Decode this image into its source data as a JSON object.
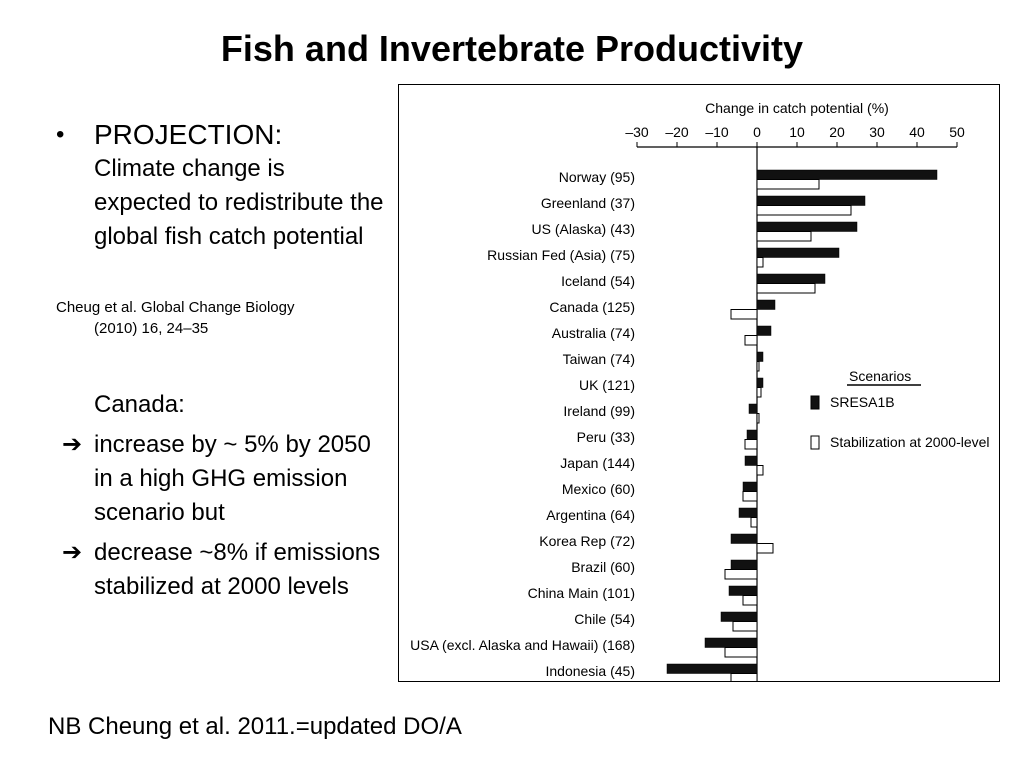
{
  "slide": {
    "title": "Fish and Invertebrate Productivity",
    "bullet": {
      "symbol": "•",
      "heading": "PROJECTION:",
      "text": "Climate change is expected to redistribute the global fish catch potential"
    },
    "citation": {
      "line1": "Cheug et al. Global Change Biology",
      "line2": "(2010) 16, 24–35"
    },
    "canada": {
      "heading": "Canada:",
      "arrow_symbol": "➔",
      "points": [
        "increase by ~ 5% by 2050 in a high GHG emission scenario but",
        "decrease ~8% if emissions stabilized at 2000 levels"
      ]
    },
    "footer": "NB Cheung et al. 2011.=updated DO/A"
  },
  "chart_data": {
    "type": "bar",
    "orientation": "horizontal",
    "title": "Change in catch potential (%)",
    "xlabel": "Change in catch potential (%)",
    "xlim": [
      -30,
      50
    ],
    "xticks": [
      "–30",
      "–20",
      "–10",
      "0",
      "10",
      "20",
      "30",
      "40",
      "50"
    ],
    "grid": false,
    "legend": {
      "title": "Scenarios",
      "placement": "right"
    },
    "categories": [
      "Norway (95)",
      "Greenland (37)",
      "US (Alaska) (43)",
      "Russian Fed (Asia) (75)",
      "Iceland (54)",
      "Canada (125)",
      "Australia (74)",
      "Taiwan (74)",
      "UK (121)",
      "Ireland (99)",
      "Peru (33)",
      "Japan (144)",
      "Mexico (60)",
      "Argentina (64)",
      "Korea Rep (72)",
      "Brazil (60)",
      "China Main (101)",
      "Chile (54)",
      "USA (excl. Alaska and Hawaii) (168)",
      "Indonesia (45)"
    ],
    "series": [
      {
        "name": "SRESA1B",
        "color": "#111111",
        "values": [
          45,
          27,
          25,
          20.5,
          17,
          4.5,
          3.5,
          1.5,
          1.5,
          -2,
          -2.5,
          -3,
          -3.5,
          -4.5,
          -6.5,
          -6.5,
          -7,
          -9,
          -13,
          -22.5
        ]
      },
      {
        "name": "Stabilization at 2000-level",
        "color": "#ffffff",
        "values": [
          15.5,
          23.5,
          13.5,
          1.5,
          14.5,
          -6.5,
          -3,
          0.5,
          1,
          0.5,
          -3,
          1.5,
          -3.5,
          -1.5,
          4,
          -8,
          -3.5,
          -6,
          -8,
          -6.5
        ]
      }
    ]
  }
}
